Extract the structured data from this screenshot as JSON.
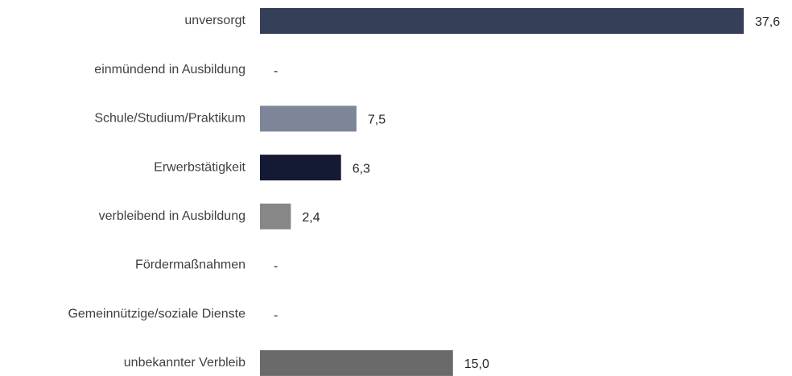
{
  "chart_data": {
    "type": "bar",
    "orientation": "horizontal",
    "categories": [
      "unversorgt",
      "einmündend in Ausbildung",
      "Schule/Studium/Praktikum",
      "Erwerbstätigkeit",
      "verbleibend in Ausbildung",
      "Fördermaßnahmen",
      "Gemeinnützige/soziale Dienste",
      "unbekannter Verbleib"
    ],
    "values": [
      37.6,
      null,
      7.5,
      6.3,
      2.4,
      null,
      null,
      15.0
    ],
    "value_labels": [
      "37,6",
      "-",
      "7,5",
      "6,3",
      "2,4",
      "-",
      "-",
      "15,0"
    ],
    "colors": [
      "#363f58",
      "#363f58",
      "#7d8598",
      "#141a33",
      "#878787",
      "#878787",
      "#878787",
      "#6a6a6a"
    ],
    "xlim": [
      0,
      37.6
    ],
    "grid": false,
    "legend": "none",
    "title": "",
    "xlabel": "",
    "ylabel": ""
  }
}
